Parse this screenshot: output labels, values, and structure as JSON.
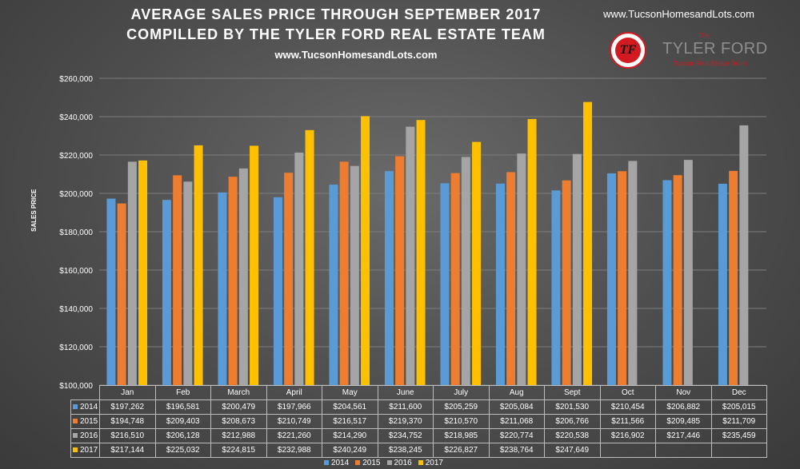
{
  "header": {
    "title_line1": "AVERAGE SALES PRICE THROUGH SEPTEMBER 2017",
    "title_line2": "COMPILLED BY THE TYLER FORD REAL ESTATE TEAM",
    "subtitle_url": "www.TucsonHomesandLots.com",
    "top_url": "www.TucsonHomesandLots.com"
  },
  "logo": {
    "the": "The",
    "name": "TYLER FORD",
    "team": "Tucson Real Estate Team",
    "monogram": "TF"
  },
  "chart_data": {
    "type": "bar",
    "ylabel": "SALES PRICE",
    "ylim": [
      100000,
      260000
    ],
    "yticks": [
      100000,
      120000,
      140000,
      160000,
      180000,
      200000,
      220000,
      240000,
      260000
    ],
    "ytick_labels": [
      "$100,000",
      "$120,000",
      "$140,000",
      "$160,000",
      "$180,000",
      "$200,000",
      "$220,000",
      "$240,000",
      "$260,000"
    ],
    "grid": true,
    "legend_position": "bottom",
    "categories": [
      "Jan",
      "Feb",
      "March",
      "April",
      "May",
      "June",
      "July",
      "Aug",
      "Sept",
      "Oct",
      "Nov",
      "Dec"
    ],
    "series": [
      {
        "name": "2014",
        "color": "#5b9bd5",
        "values": [
          197262,
          196581,
          200479,
          197966,
          204561,
          211600,
          205259,
          205084,
          201530,
          210454,
          206882,
          205015
        ],
        "labels": [
          "$197,262",
          "$196,581",
          "$200,479",
          "$197,966",
          "$204,561",
          "$211,600",
          "$205,259",
          "$205,084",
          "$201,530",
          "$210,454",
          "$206,882",
          "$205,015"
        ]
      },
      {
        "name": "2015",
        "color": "#ed7d31",
        "values": [
          194748,
          209403,
          208673,
          210749,
          216517,
          219370,
          210570,
          211068,
          206766,
          211566,
          209485,
          211709
        ],
        "labels": [
          "$194,748",
          "$209,403",
          "$208,673",
          "$210,749",
          "$216,517",
          "$219,370",
          "$210,570",
          "$211,068",
          "$206,766",
          "$211,566",
          "$209,485",
          "$211,709"
        ]
      },
      {
        "name": "2016",
        "color": "#a5a5a5",
        "values": [
          216510,
          206128,
          212988,
          221260,
          214290,
          234752,
          218985,
          220774,
          220538,
          216902,
          217446,
          235459
        ],
        "labels": [
          "$216,510",
          "$206,128",
          "$212,988",
          "$221,260",
          "$214,290",
          "$234,752",
          "$218,985",
          "$220,774",
          "$220,538",
          "$216,902",
          "$217,446",
          "$235,459"
        ]
      },
      {
        "name": "2017",
        "color": "#ffc000",
        "values": [
          217144,
          225032,
          224815,
          232988,
          240249,
          238245,
          226827,
          238764,
          247649,
          null,
          null,
          null
        ],
        "labels": [
          "$217,144",
          "$225,032",
          "$224,815",
          "$232,988",
          "$240,249",
          "$238,245",
          "$226,827",
          "$238,764",
          "$247,649",
          "",
          "",
          ""
        ]
      }
    ]
  }
}
